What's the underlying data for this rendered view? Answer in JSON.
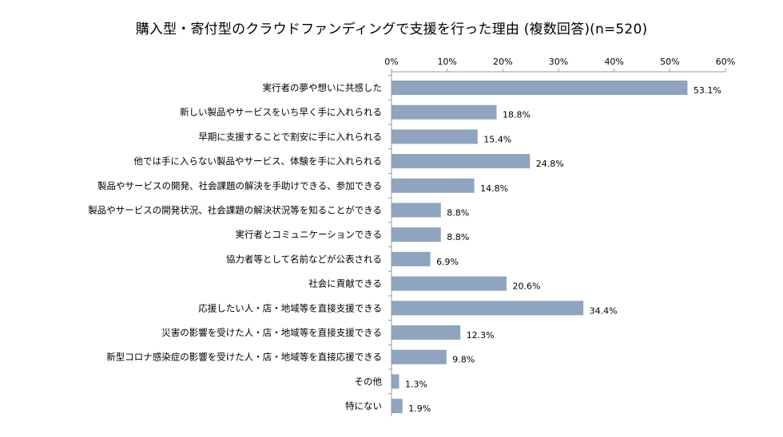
{
  "chart_data": {
    "type": "bar",
    "orientation": "horizontal",
    "title": "購入型・寄付型のクラウドファンディングで支援を行った理由 (複数回答)(n=520)",
    "xlabel": "",
    "ylabel": "",
    "xlim": [
      0,
      60
    ],
    "x_ticks": [
      "0%",
      "10%",
      "20%",
      "30%",
      "40%",
      "50%",
      "60%"
    ],
    "axis_position": "top",
    "grid": false,
    "legend": "none",
    "bar_color": "#8ea4bf",
    "categories": [
      "実行者の夢や想いに共感した",
      "新しい製品やサービスをいち早く手に入れられる",
      "早期に支援することで割安に手に入れられる",
      "他では手に入らない製品やサービス、体験を手に入れられる",
      "製品やサービスの開発、社会課題の解決を手助けできる、参加できる",
      "製品やサービスの開発状況、社会課題の解決状況等を知ることができる",
      "実行者とコミュニケーションできる",
      "協力者等として名前などが公表される",
      "社会に貢献できる",
      "応援したい人・店・地域等を直接支援できる",
      "災害の影響を受けた人・店・地域等を直接支援できる",
      "新型コロナ感染症の影響を受けた人・店・地域等を直接応援できる",
      "その他",
      "特にない"
    ],
    "values": [
      53.1,
      18.8,
      15.4,
      24.8,
      14.8,
      8.8,
      8.8,
      6.9,
      20.6,
      34.4,
      12.3,
      9.8,
      1.3,
      1.9
    ],
    "value_labels": [
      "53.1%",
      "18.8%",
      "15.4%",
      "24.8%",
      "14.8%",
      "8.8%",
      "8.8%",
      "6.9%",
      "20.6%",
      "34.4%",
      "12.3%",
      "9.8%",
      "1.3%",
      "1.9%"
    ]
  }
}
